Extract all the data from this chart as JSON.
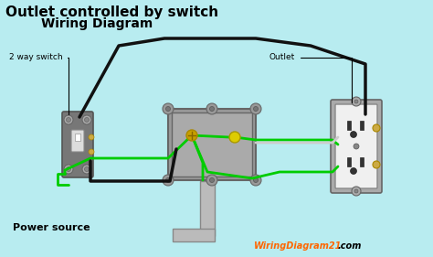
{
  "bg_color": "#b8ecf0",
  "title_line1": "Outlet controlled by switch",
  "title_line2": "Wiring Diagram",
  "title_color": "#000000",
  "title_fontsize1": 11,
  "title_fontsize2": 10,
  "label_switch": "2 way switch",
  "label_outlet": "Outlet",
  "label_power": "Power source",
  "label_website_orange": "WiringDiagram21",
  "label_website_black": ".com",
  "wire_black": "#111111",
  "wire_green": "#00cc00",
  "wire_white": "#cccccc",
  "wire_yellow": "#ccaa00",
  "screw_gold": "#c8a000",
  "switch_color": "#777777",
  "switch_dark": "#555555",
  "jbox_color": "#999999",
  "jbox_dark": "#666666",
  "jbox_inner": "#aaaaaa",
  "outlet_gray": "#aaaaaa",
  "outlet_white": "#f0f0f0",
  "outlet_screw_gold": "#ccaa44",
  "website_color1": "#ff6600",
  "website_color2": "#000000"
}
